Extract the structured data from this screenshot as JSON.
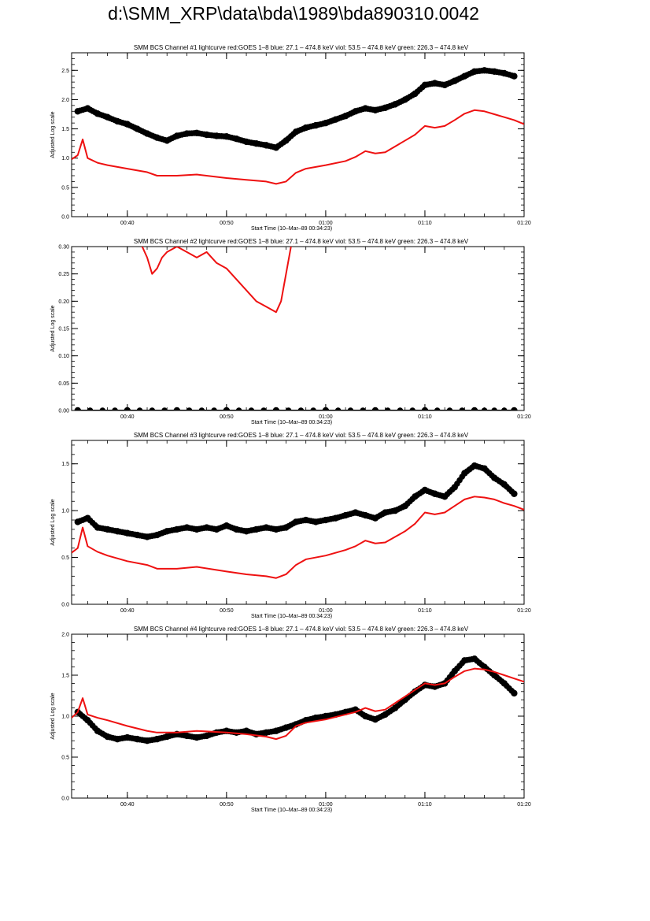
{
  "page_title": "d:\\SMM_XRP\\data\\bda\\1989\\bda890310.0042",
  "colors": {
    "goes": "#ee1111",
    "bcs": "#000000",
    "axis": "#000000"
  },
  "chart_data": [
    {
      "type": "line",
      "title": "SMM BCS Channel #1 lightcurve  red:GOES 1–8  blue: 27.1 – 474.8 keV  viol: 53.5 – 474.8 keV  green: 226.3 – 474.8 keV",
      "xlabel": "Start Time (10–Mar–89 00:34:23)",
      "ylabel": "Adjusted Log scale",
      "xlim": [
        "00:34:23",
        "01:20:00"
      ],
      "ylim": [
        0.0,
        2.8
      ],
      "x_ticks": [
        "00:40",
        "00:50",
        "01:00",
        "01:10",
        "01:20"
      ],
      "y_ticks": [
        "0.0",
        "0.5",
        "1.0",
        "1.5",
        "2.0",
        "2.5"
      ],
      "series": [
        {
          "marker": "circle",
          "x": [
            "00:35",
            "00:36",
            "00:37",
            "00:38",
            "00:39",
            "00:40",
            "00:41",
            "00:42",
            "00:43",
            "00:44",
            "00:45",
            "00:46",
            "00:47",
            "00:48",
            "00:49",
            "00:50",
            "00:51",
            "00:52",
            "00:53",
            "00:54",
            "00:55",
            "00:56",
            "00:57",
            "00:58",
            "00:59",
            "01:00",
            "01:01",
            "01:02",
            "01:03",
            "01:04",
            "01:05",
            "01:06",
            "01:07",
            "01:08",
            "01:09",
            "01:10",
            "01:11",
            "01:12",
            "01:13",
            "01:14",
            "01:15",
            "01:16",
            "01:17",
            "01:18",
            "01:19"
          ],
          "values": [
            1.8,
            1.85,
            1.76,
            1.7,
            1.63,
            1.58,
            1.5,
            1.42,
            1.35,
            1.3,
            1.38,
            1.42,
            1.43,
            1.4,
            1.38,
            1.37,
            1.33,
            1.28,
            1.25,
            1.22,
            1.18,
            1.3,
            1.45,
            1.52,
            1.56,
            1.6,
            1.66,
            1.72,
            1.8,
            1.85,
            1.82,
            1.86,
            1.92,
            2.0,
            2.1,
            2.25,
            2.28,
            2.25,
            2.32,
            2.4,
            2.48,
            2.5,
            2.48,
            2.45,
            2.4
          ]
        },
        {
          "marker": "none",
          "x": [
            "00:34:23",
            "00:35",
            "00:35:30",
            "00:36",
            "00:37",
            "00:38",
            "00:40",
            "00:42",
            "00:43",
            "00:45",
            "00:47",
            "00:50",
            "00:52",
            "00:54",
            "00:55",
            "00:56",
            "00:57",
            "00:58",
            "01:00",
            "01:02",
            "01:03",
            "01:04",
            "01:05",
            "01:06",
            "01:07",
            "01:08",
            "01:09",
            "01:10",
            "01:11",
            "01:12",
            "01:13",
            "01:14",
            "01:15",
            "01:16",
            "01:17",
            "01:18",
            "01:19",
            "01:20"
          ],
          "values": [
            0.98,
            1.05,
            1.32,
            1.0,
            0.92,
            0.88,
            0.82,
            0.76,
            0.7,
            0.7,
            0.72,
            0.66,
            0.63,
            0.6,
            0.56,
            0.6,
            0.75,
            0.82,
            0.88,
            0.95,
            1.02,
            1.12,
            1.08,
            1.1,
            1.2,
            1.3,
            1.4,
            1.55,
            1.52,
            1.55,
            1.65,
            1.76,
            1.82,
            1.8,
            1.75,
            1.7,
            1.65,
            1.58
          ]
        }
      ]
    },
    {
      "type": "line",
      "title": "SMM BCS Channel #2 lightcurve  red:GOES 1–8  blue: 27.1 – 474.8 keV  viol: 53.5 – 474.8 keV  green: 226.3 – 474.8 keV",
      "xlabel": "Start Time (10–Mar–89 00:34:23)",
      "ylabel": "Adjusted Log scale",
      "xlim": [
        "00:34:23",
        "01:20:00"
      ],
      "ylim": [
        0.0,
        0.3
      ],
      "x_ticks": [
        "00:40",
        "00:50",
        "01:00",
        "01:10",
        "01:20"
      ],
      "y_ticks": [
        "0.00",
        "0.05",
        "0.10",
        "0.15",
        "0.20",
        "0.25",
        "0.30"
      ],
      "series": [
        {
          "marker": "circle",
          "x": [
            "00:35",
            "00:40",
            "00:45",
            "00:50",
            "00:55",
            "01:00",
            "01:05",
            "01:10",
            "01:15",
            "01:19"
          ],
          "values": [
            0.0,
            0.0,
            0.0,
            0.0,
            0.0,
            0.0,
            0.0,
            0.0,
            0.0,
            0.0
          ]
        },
        {
          "marker": "none",
          "x": [
            "00:41:30",
            "00:42",
            "00:42:30",
            "00:43",
            "00:43:30",
            "00:44",
            "00:45",
            "00:46",
            "00:47",
            "00:48",
            "00:49",
            "00:50",
            "00:51",
            "00:52",
            "00:53",
            "00:54",
            "00:55",
            "00:55:30",
            "00:56",
            "00:56:30"
          ],
          "values": [
            0.3,
            0.28,
            0.25,
            0.26,
            0.28,
            0.29,
            0.3,
            0.29,
            0.28,
            0.29,
            0.27,
            0.26,
            0.24,
            0.22,
            0.2,
            0.19,
            0.18,
            0.2,
            0.25,
            0.3
          ]
        }
      ]
    },
    {
      "type": "line",
      "title": "SMM BCS Channel #3 lightcurve  red:GOES 1–8  blue: 27.1 – 474.8 keV  viol: 53.5 – 474.8 keV  green: 226.3 – 474.8 keV",
      "xlabel": "Start Time (10–Mar–89 00:34:23)",
      "ylabel": "Adjusted Log scale",
      "xlim": [
        "00:34:23",
        "01:20:00"
      ],
      "ylim": [
        0.0,
        1.75
      ],
      "x_ticks": [
        "00:40",
        "00:50",
        "01:00",
        "01:10",
        "01:20"
      ],
      "y_ticks": [
        "0.0",
        "0.5",
        "1.0",
        "1.5"
      ],
      "series": [
        {
          "marker": "circle",
          "x": [
            "00:35",
            "00:36",
            "00:37",
            "00:38",
            "00:39",
            "00:40",
            "00:41",
            "00:42",
            "00:43",
            "00:44",
            "00:45",
            "00:46",
            "00:47",
            "00:48",
            "00:49",
            "00:50",
            "00:51",
            "00:52",
            "00:53",
            "00:54",
            "00:55",
            "00:56",
            "00:57",
            "00:58",
            "00:59",
            "01:00",
            "01:01",
            "01:02",
            "01:03",
            "01:04",
            "01:05",
            "01:06",
            "01:07",
            "01:08",
            "01:09",
            "01:10",
            "01:11",
            "01:12",
            "01:13",
            "01:14",
            "01:15",
            "01:16",
            "01:17",
            "01:18",
            "01:19"
          ],
          "values": [
            0.88,
            0.92,
            0.82,
            0.8,
            0.78,
            0.76,
            0.74,
            0.72,
            0.74,
            0.78,
            0.8,
            0.82,
            0.8,
            0.82,
            0.8,
            0.84,
            0.8,
            0.78,
            0.8,
            0.82,
            0.8,
            0.82,
            0.88,
            0.9,
            0.88,
            0.9,
            0.92,
            0.95,
            0.98,
            0.95,
            0.92,
            0.98,
            1.0,
            1.05,
            1.15,
            1.22,
            1.18,
            1.15,
            1.25,
            1.4,
            1.48,
            1.45,
            1.35,
            1.28,
            1.18
          ]
        },
        {
          "marker": "none",
          "x": [
            "00:34:23",
            "00:35",
            "00:35:30",
            "00:36",
            "00:37",
            "00:38",
            "00:40",
            "00:42",
            "00:43",
            "00:45",
            "00:47",
            "00:50",
            "00:52",
            "00:54",
            "00:55",
            "00:56",
            "00:57",
            "00:58",
            "01:00",
            "01:02",
            "01:03",
            "01:04",
            "01:05",
            "01:06",
            "01:07",
            "01:08",
            "01:09",
            "01:10",
            "01:11",
            "01:12",
            "01:13",
            "01:14",
            "01:15",
            "01:16",
            "01:17",
            "01:18",
            "01:19",
            "01:20"
          ],
          "values": [
            0.55,
            0.6,
            0.82,
            0.62,
            0.56,
            0.52,
            0.46,
            0.42,
            0.38,
            0.38,
            0.4,
            0.35,
            0.32,
            0.3,
            0.28,
            0.32,
            0.42,
            0.48,
            0.52,
            0.58,
            0.62,
            0.68,
            0.65,
            0.66,
            0.72,
            0.78,
            0.86,
            0.98,
            0.96,
            0.98,
            1.05,
            1.12,
            1.15,
            1.14,
            1.12,
            1.08,
            1.05,
            1.01
          ]
        }
      ]
    },
    {
      "type": "line",
      "title": "SMM BCS Channel #4 lightcurve  red:GOES 1–8  blue: 27.1 – 474.8 keV  viol: 53.5 – 474.8 keV  green: 226.3 – 474.8 keV",
      "xlabel": "Start Time (10–Mar–89 00:34:23)",
      "ylabel": "Adjusted Log scale",
      "xlim": [
        "00:34:23",
        "01:20:00"
      ],
      "ylim": [
        0.0,
        2.0
      ],
      "x_ticks": [
        "00:40",
        "00:50",
        "01:00",
        "01:10",
        "01:20"
      ],
      "y_ticks": [
        "0.0",
        "0.5",
        "1.0",
        "1.5",
        "2.0"
      ],
      "series": [
        {
          "marker": "circle",
          "x": [
            "00:35",
            "00:36",
            "00:37",
            "00:38",
            "00:39",
            "00:40",
            "00:41",
            "00:42",
            "00:43",
            "00:44",
            "00:45",
            "00:46",
            "00:47",
            "00:48",
            "00:49",
            "00:50",
            "00:51",
            "00:52",
            "00:53",
            "00:54",
            "00:55",
            "00:56",
            "00:57",
            "00:58",
            "00:59",
            "01:00",
            "01:01",
            "01:02",
            "01:03",
            "01:04",
            "01:05",
            "01:06",
            "01:07",
            "01:08",
            "01:09",
            "01:10",
            "01:11",
            "01:12",
            "01:13",
            "01:14",
            "01:15",
            "01:16",
            "01:17",
            "01:18",
            "01:19"
          ],
          "values": [
            1.05,
            0.95,
            0.82,
            0.75,
            0.72,
            0.74,
            0.72,
            0.7,
            0.72,
            0.75,
            0.78,
            0.76,
            0.74,
            0.76,
            0.8,
            0.82,
            0.8,
            0.82,
            0.78,
            0.8,
            0.82,
            0.86,
            0.9,
            0.95,
            0.98,
            1.0,
            1.02,
            1.05,
            1.08,
            1.0,
            0.96,
            1.02,
            1.1,
            1.2,
            1.3,
            1.38,
            1.36,
            1.4,
            1.55,
            1.68,
            1.7,
            1.6,
            1.5,
            1.4,
            1.28
          ]
        },
        {
          "marker": "none",
          "x": [
            "00:34:23",
            "00:35",
            "00:35:30",
            "00:36",
            "00:37",
            "00:38",
            "00:40",
            "00:42",
            "00:43",
            "00:45",
            "00:47",
            "00:50",
            "00:52",
            "00:54",
            "00:55",
            "00:56",
            "00:57",
            "00:58",
            "01:00",
            "01:02",
            "01:03",
            "01:04",
            "01:05",
            "01:06",
            "01:07",
            "01:08",
            "01:09",
            "01:10",
            "01:11",
            "01:12",
            "01:13",
            "01:14",
            "01:15",
            "01:16",
            "01:17",
            "01:18",
            "01:19",
            "01:20"
          ],
          "values": [
            0.98,
            1.05,
            1.22,
            1.02,
            0.98,
            0.95,
            0.88,
            0.82,
            0.8,
            0.8,
            0.82,
            0.8,
            0.78,
            0.75,
            0.72,
            0.76,
            0.88,
            0.92,
            0.96,
            1.02,
            1.05,
            1.1,
            1.06,
            1.08,
            1.16,
            1.24,
            1.32,
            1.4,
            1.38,
            1.4,
            1.48,
            1.55,
            1.58,
            1.57,
            1.54,
            1.5,
            1.46,
            1.42
          ]
        }
      ]
    }
  ]
}
